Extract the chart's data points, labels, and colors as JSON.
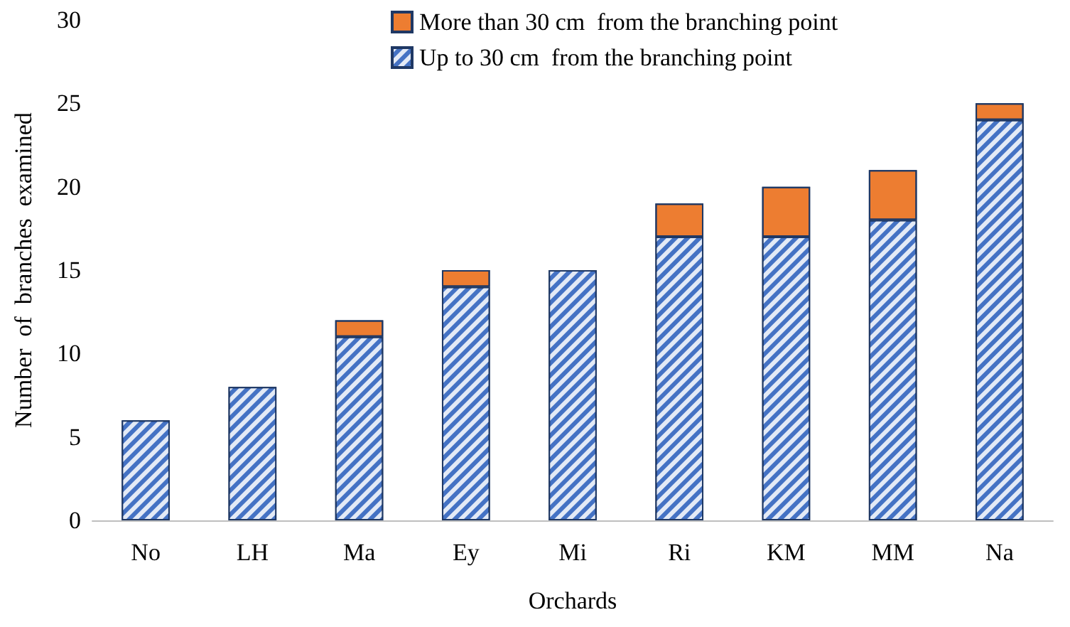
{
  "chart_data": {
    "type": "bar",
    "stacked": true,
    "xlabel": "Orchards",
    "ylabel": "Number  of  branches  examined",
    "categories": [
      "No",
      "LH",
      "Ma",
      "Ey",
      "Mi",
      "Ri",
      "KM",
      "MM",
      "Na"
    ],
    "series": [
      {
        "name": "Up to 30 cm  from the branching point",
        "color": "#4472c4",
        "values": [
          6,
          8,
          11,
          14,
          15,
          17,
          17,
          18,
          24
        ]
      },
      {
        "name": "More than 30 cm  from the branching point",
        "color": "#ed7d31",
        "values": [
          0,
          0,
          1,
          1,
          0,
          2,
          3,
          3,
          1
        ]
      }
    ],
    "ylim": [
      0,
      30
    ],
    "yticks": [
      0,
      5,
      10,
      15,
      20,
      25,
      30
    ],
    "grid": false,
    "legend": "top"
  }
}
